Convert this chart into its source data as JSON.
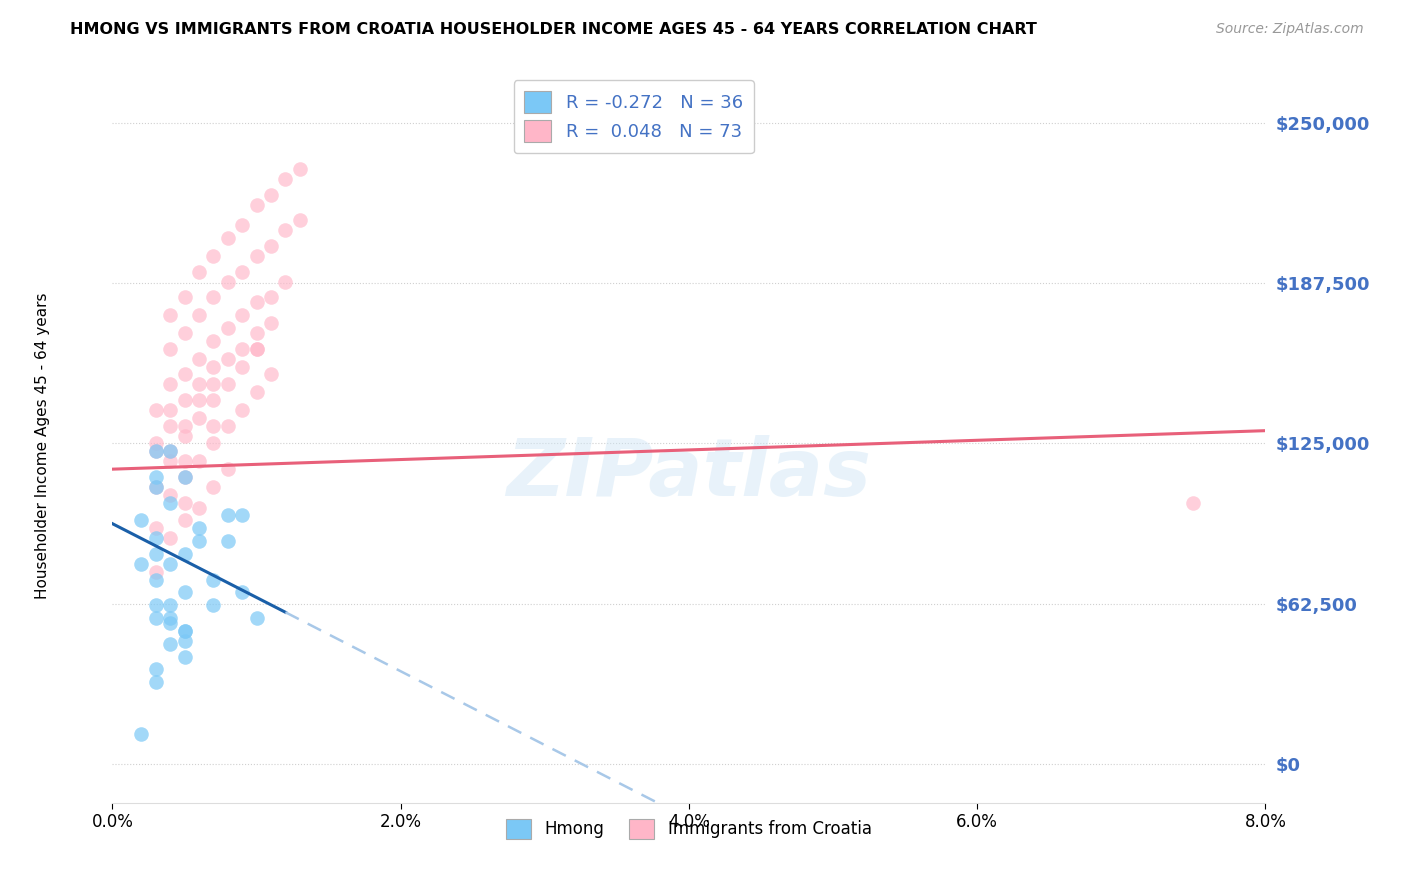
{
  "title": "HMONG VS IMMIGRANTS FROM CROATIA HOUSEHOLDER INCOME AGES 45 - 64 YEARS CORRELATION CHART",
  "source": "Source: ZipAtlas.com",
  "ylabel": "Householder Income Ages 45 - 64 years",
  "xlim": [
    0.0,
    0.08
  ],
  "ylim": [
    -15000,
    270000
  ],
  "yticks": [
    0,
    62500,
    125000,
    187500,
    250000
  ],
  "ytick_labels": [
    "$0",
    "$62,500",
    "$125,000",
    "$187,500",
    "$250,000"
  ],
  "xticks": [
    0.0,
    0.02,
    0.04,
    0.06,
    0.08
  ],
  "xtick_labels": [
    "0.0%",
    "2.0%",
    "4.0%",
    "6.0%",
    "8.0%"
  ],
  "hmong_R": -0.272,
  "hmong_N": 36,
  "croatia_R": 0.048,
  "croatia_N": 73,
  "background_color": "#ffffff",
  "grid_color": "#d0d0d0",
  "watermark": "ZIPatlas",
  "hmong_color": "#7bc8f6",
  "croatia_color": "#ffb6c8",
  "hmong_line_color": "#1a5fa8",
  "croatia_line_color": "#e8607a",
  "hmong_dash_color": "#a8c8e8",
  "label_color": "#4472c4",
  "hmong_x": [
    0.002,
    0.002,
    0.003,
    0.003,
    0.003,
    0.004,
    0.004,
    0.004,
    0.005,
    0.005,
    0.006,
    0.007,
    0.007,
    0.008,
    0.009,
    0.01,
    0.003,
    0.003,
    0.004,
    0.005,
    0.003,
    0.004,
    0.005,
    0.005,
    0.003,
    0.005,
    0.006,
    0.008,
    0.009,
    0.003,
    0.004,
    0.005,
    0.003,
    0.004,
    0.002,
    0.003
  ],
  "hmong_y": [
    95000,
    78000,
    82000,
    72000,
    88000,
    62000,
    55000,
    78000,
    52000,
    48000,
    87000,
    72000,
    62000,
    97000,
    67000,
    57000,
    108000,
    112000,
    57000,
    42000,
    37000,
    102000,
    67000,
    52000,
    122000,
    82000,
    92000,
    87000,
    97000,
    32000,
    47000,
    112000,
    57000,
    122000,
    12000,
    62000
  ],
  "croatia_x": [
    0.003,
    0.003,
    0.004,
    0.004,
    0.004,
    0.004,
    0.004,
    0.005,
    0.005,
    0.005,
    0.005,
    0.005,
    0.005,
    0.006,
    0.006,
    0.006,
    0.006,
    0.007,
    0.007,
    0.007,
    0.007,
    0.007,
    0.008,
    0.008,
    0.008,
    0.009,
    0.009,
    0.009,
    0.01,
    0.01,
    0.01,
    0.01,
    0.011,
    0.011,
    0.011,
    0.012,
    0.012,
    0.012,
    0.013,
    0.013,
    0.003,
    0.003,
    0.003,
    0.004,
    0.004,
    0.005,
    0.005,
    0.006,
    0.006,
    0.007,
    0.007,
    0.008,
    0.008,
    0.009,
    0.01,
    0.011,
    0.004,
    0.005,
    0.006,
    0.007,
    0.008,
    0.009,
    0.01,
    0.004,
    0.005,
    0.006,
    0.007,
    0.008,
    0.009,
    0.01,
    0.011,
    0.075,
    0.003
  ],
  "croatia_y": [
    138000,
    122000,
    175000,
    162000,
    148000,
    132000,
    118000,
    182000,
    168000,
    152000,
    132000,
    118000,
    102000,
    192000,
    175000,
    158000,
    142000,
    198000,
    182000,
    165000,
    148000,
    132000,
    205000,
    188000,
    170000,
    210000,
    192000,
    175000,
    218000,
    198000,
    180000,
    162000,
    222000,
    202000,
    182000,
    228000,
    208000,
    188000,
    232000,
    212000,
    108000,
    92000,
    75000,
    105000,
    88000,
    112000,
    95000,
    118000,
    100000,
    125000,
    108000,
    132000,
    115000,
    138000,
    145000,
    152000,
    138000,
    142000,
    148000,
    155000,
    158000,
    162000,
    168000,
    122000,
    128000,
    135000,
    142000,
    148000,
    155000,
    162000,
    172000,
    102000,
    125000
  ]
}
